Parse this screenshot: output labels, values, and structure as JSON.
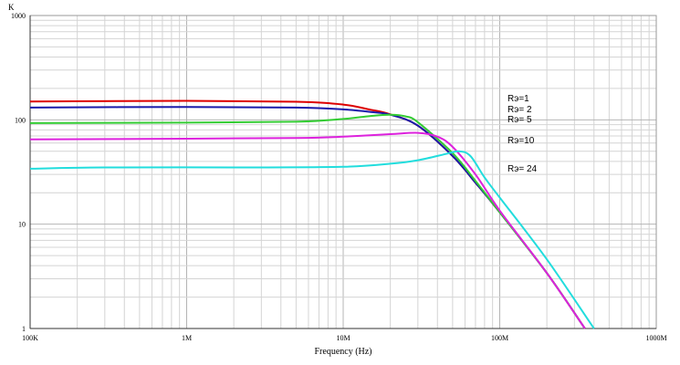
{
  "chart_data": {
    "type": "line",
    "x_scale": "log",
    "y_scale": "log",
    "xlim": [
      100000,
      1000000000
    ],
    "ylim": [
      1,
      1000
    ],
    "xlabel": "Frequency (Hz)",
    "ylabel": "K",
    "x_ticks": [
      {
        "value": 100000,
        "label": "100K"
      },
      {
        "value": 1000000,
        "label": "1M"
      },
      {
        "value": 10000000,
        "label": "10M"
      },
      {
        "value": 100000000,
        "label": "100M"
      },
      {
        "value": 1000000000,
        "label": "1000M"
      }
    ],
    "y_ticks": [
      {
        "value": 1000,
        "label": "1000"
      },
      {
        "value": 100,
        "label": "100"
      },
      {
        "value": 10,
        "label": "10"
      },
      {
        "value": 1,
        "label": "1"
      }
    ],
    "grid": true,
    "series": [
      {
        "name": "Rэ=1",
        "color": "#dd0000",
        "points": [
          [
            100000,
            150
          ],
          [
            1000000,
            152
          ],
          [
            5000000,
            149
          ],
          [
            10000000,
            140
          ],
          [
            15000000,
            125
          ],
          [
            20000000,
            113
          ],
          [
            30000000,
            88
          ],
          [
            50000000,
            45
          ],
          [
            70000000,
            25
          ],
          [
            100000000,
            13
          ],
          [
            200000000,
            3.4
          ],
          [
            350000000,
            1.0
          ]
        ]
      },
      {
        "name": "Rэ= 2",
        "color": "#1a1aaa",
        "points": [
          [
            100000,
            131
          ],
          [
            1000000,
            133
          ],
          [
            5000000,
            131
          ],
          [
            10000000,
            126
          ],
          [
            15000000,
            119
          ],
          [
            20000000,
            112
          ],
          [
            30000000,
            88
          ],
          [
            50000000,
            45
          ],
          [
            70000000,
            25
          ],
          [
            100000000,
            13
          ],
          [
            200000000,
            3.4
          ],
          [
            350000000,
            1.0
          ]
        ]
      },
      {
        "name": "Rэ= 5",
        "color": "#33cc33",
        "points": [
          [
            100000,
            93
          ],
          [
            1000000,
            94
          ],
          [
            5000000,
            96
          ],
          [
            10000000,
            102
          ],
          [
            15000000,
            109
          ],
          [
            20000000,
            112
          ],
          [
            25000000,
            108
          ],
          [
            30000000,
            95
          ],
          [
            50000000,
            48
          ],
          [
            70000000,
            26
          ],
          [
            100000000,
            13
          ],
          [
            200000000,
            3.4
          ],
          [
            350000000,
            1.0
          ]
        ]
      },
      {
        "name": "Rэ=10",
        "color": "#dd22dd",
        "points": [
          [
            100000,
            65
          ],
          [
            1000000,
            66
          ],
          [
            5000000,
            67
          ],
          [
            10000000,
            69
          ],
          [
            20000000,
            73
          ],
          [
            30000000,
            75
          ],
          [
            40000000,
            69
          ],
          [
            50000000,
            55
          ],
          [
            70000000,
            30
          ],
          [
            100000000,
            13.5
          ],
          [
            200000000,
            3.4
          ],
          [
            350000000,
            1.0
          ]
        ]
      },
      {
        "name": "Rэ= 24",
        "color": "#22dddd",
        "points": [
          [
            100000,
            34
          ],
          [
            300000,
            35
          ],
          [
            3000000,
            35
          ],
          [
            10000000,
            35.5
          ],
          [
            20000000,
            38
          ],
          [
            30000000,
            41
          ],
          [
            45000000,
            47
          ],
          [
            55000000,
            50
          ],
          [
            65000000,
            45
          ],
          [
            80000000,
            28
          ],
          [
            100000000,
            18
          ],
          [
            200000000,
            4.6
          ],
          [
            400000000,
            1.0
          ]
        ]
      }
    ],
    "legend_entries": [
      "Rэ=1",
      "Rэ= 2",
      "Rэ= 5",
      "Rэ=10",
      "Rэ= 24"
    ]
  }
}
